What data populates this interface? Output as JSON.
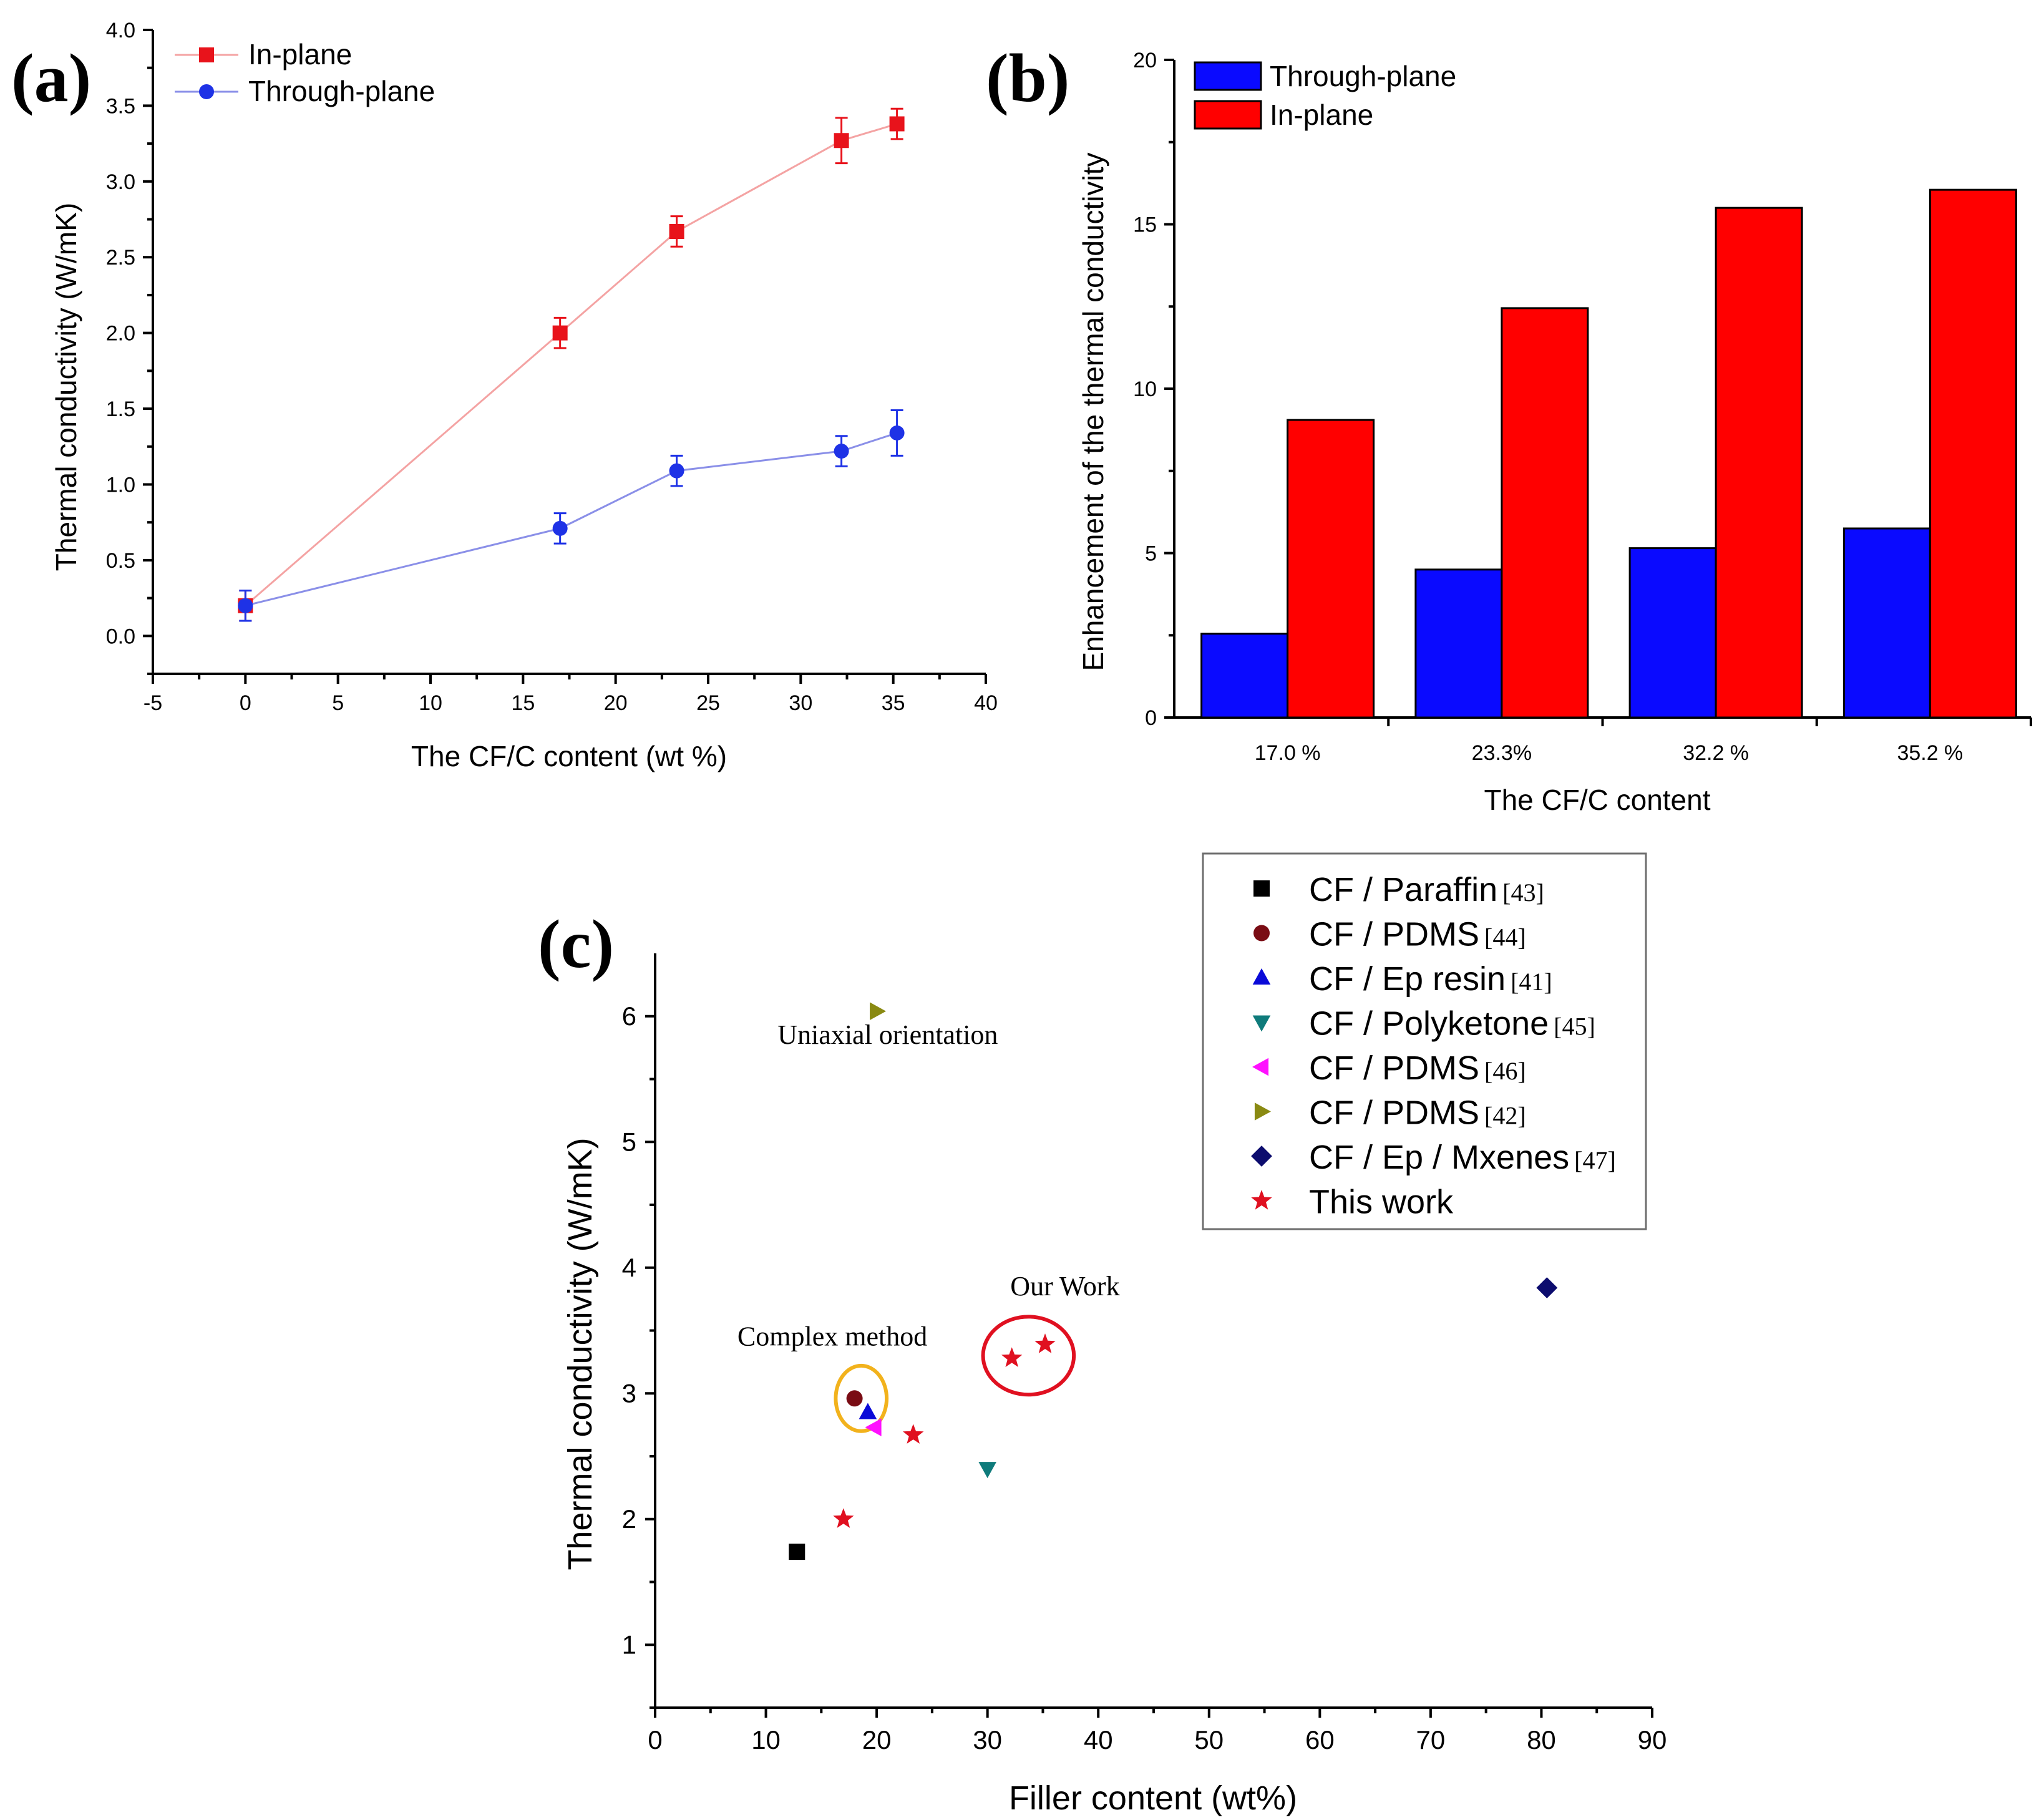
{
  "chart_data": [
    {
      "id": "a",
      "type": "line",
      "panel_label": "(a)",
      "xlabel": "The CF/C content (wt %)",
      "ylabel": "Thermal conductivity (W/mK)",
      "xlim": [
        -5,
        40
      ],
      "ylim": [
        -0.25,
        4.0
      ],
      "xticks": [
        -5,
        0,
        5,
        10,
        15,
        20,
        25,
        30,
        35,
        40
      ],
      "yticks": [
        0.0,
        0.5,
        1.0,
        1.5,
        2.0,
        2.5,
        3.0,
        3.5,
        4.0
      ],
      "xtick_labels": [
        "-5",
        "0",
        "5",
        "10",
        "15",
        "20",
        "25",
        "30",
        "35",
        "40"
      ],
      "ytick_labels": [
        "0.0",
        "0.5",
        "1.0",
        "1.5",
        "2.0",
        "2.5",
        "3.0",
        "3.5",
        "4.0"
      ],
      "legend_position": "top-left",
      "series": [
        {
          "name": "In-plane",
          "color": "#e8131b",
          "line_color": "#f4a3a3",
          "marker": "square",
          "x": [
            0,
            17,
            23.3,
            32.2,
            35.2
          ],
          "y": [
            0.2,
            2.0,
            2.67,
            3.27,
            3.38
          ],
          "err": [
            0.1,
            0.1,
            0.1,
            0.15,
            0.1
          ]
        },
        {
          "name": "Through-plane",
          "color": "#1e32e6",
          "line_color": "#8a8fe8",
          "marker": "circle",
          "x": [
            0,
            17,
            23.3,
            32.2,
            35.2
          ],
          "y": [
            0.2,
            0.71,
            1.09,
            1.22,
            1.34
          ],
          "err": [
            0.1,
            0.1,
            0.1,
            0.1,
            0.15
          ]
        }
      ]
    },
    {
      "id": "b",
      "type": "bar",
      "panel_label": "(b)",
      "xlabel": "The CF/C content",
      "ylabel": "Enhancement of the thermal conductivity",
      "categories": [
        "17.0 %",
        "23.3%",
        "32.2 %",
        "35.2 %"
      ],
      "ylim": [
        0,
        20
      ],
      "yticks": [
        0,
        5,
        10,
        15,
        20
      ],
      "ytick_labels": [
        "0",
        "5",
        "10",
        "15",
        "20"
      ],
      "legend_position": "top-left",
      "series": [
        {
          "name": "Through-plane",
          "color": "#0a0aff",
          "values": [
            2.55,
            4.5,
            5.15,
            5.75
          ]
        },
        {
          "name": "In-plane",
          "color": "#ff0000",
          "values": [
            9.05,
            12.45,
            15.5,
            16.05
          ]
        }
      ]
    },
    {
      "id": "c",
      "type": "scatter",
      "panel_label": "(c)",
      "xlabel": "Filler content (wt%)",
      "ylabel": "Thermal conductivity (W/mK)",
      "xlim": [
        0,
        90
      ],
      "ylim": [
        0.5,
        6.5
      ],
      "xticks": [
        0,
        10,
        20,
        30,
        40,
        50,
        60,
        70,
        80,
        90
      ],
      "yticks": [
        1,
        2,
        3,
        4,
        5,
        6
      ],
      "xtick_labels": [
        "0",
        "10",
        "20",
        "30",
        "40",
        "50",
        "60",
        "70",
        "80",
        "90"
      ],
      "ytick_labels": [
        "1",
        "2",
        "3",
        "4",
        "5",
        "6"
      ],
      "legend_position": "top-right",
      "series": [
        {
          "name": "CF / Paraffin",
          "ref": "[43]",
          "marker": "square",
          "color": "#000000",
          "points": [
            [
              12.8,
              1.74
            ]
          ]
        },
        {
          "name": "CF / PDMS",
          "ref": "[44]",
          "marker": "circle",
          "color": "#7a0c14",
          "points": [
            [
              18,
              2.96
            ]
          ]
        },
        {
          "name": "CF / Ep resin",
          "ref": "[41]",
          "marker": "triangle-up",
          "color": "#0a0ad8",
          "points": [
            [
              19.2,
              2.85
            ]
          ]
        },
        {
          "name": "CF / Polyketone",
          "ref": "[45]",
          "marker": "triangle-down",
          "color": "#0f7b7b",
          "points": [
            [
              30,
              2.4
            ]
          ]
        },
        {
          "name": "CF / PDMS",
          "ref": "[46]",
          "marker": "triangle-left",
          "color": "#ff10ff",
          "points": [
            [
              19.8,
              2.73
            ]
          ]
        },
        {
          "name": "CF / PDMS",
          "ref": "[42]",
          "marker": "triangle-right",
          "color": "#8a8a12",
          "points": [
            [
              20,
              6.04
            ]
          ]
        },
        {
          "name": "CF /  Ep / Mxenes",
          "ref": "[47]",
          "marker": "diamond",
          "color": "#0c0c6e",
          "points": [
            [
              80.5,
              3.84
            ]
          ]
        },
        {
          "name": "This work",
          "ref": "",
          "marker": "star",
          "color": "#e01020",
          "points": [
            [
              17,
              2.0
            ],
            [
              23.3,
              2.67
            ],
            [
              32.2,
              3.28
            ],
            [
              35.2,
              3.39
            ]
          ]
        }
      ],
      "annotations": [
        {
          "text": "Uniaxial orientation",
          "x": 21,
          "y": 5.78
        },
        {
          "text": "Complex method",
          "x": 16,
          "y": 3.38
        },
        {
          "text": "Our Work",
          "x": 37,
          "y": 3.78
        }
      ],
      "highlights": [
        {
          "label": "complex-method-ellipse",
          "color": "#f2b21c",
          "cx": 18.6,
          "cy": 2.96,
          "rx": 2.3,
          "ry": 0.26
        },
        {
          "label": "our-work-ellipse",
          "color": "#e01020",
          "cx": 33.7,
          "cy": 3.3,
          "rx": 4.1,
          "ry": 0.31
        }
      ]
    }
  ]
}
